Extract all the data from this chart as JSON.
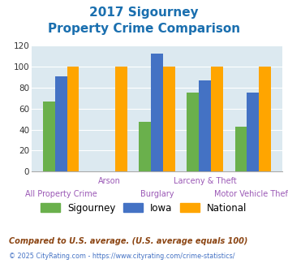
{
  "title_line1": "2017 Sigourney",
  "title_line2": "Property Crime Comparison",
  "title_color": "#1a6faf",
  "categories": [
    "All Property Crime",
    "Arson",
    "Burglary",
    "Larceny & Theft",
    "Motor Vehicle Theft"
  ],
  "cat_labels_row1": [
    "",
    "Arson",
    "",
    "Larceny & Theft",
    ""
  ],
  "cat_labels_row2": [
    "All Property Crime",
    "",
    "Burglary",
    "",
    "Motor Vehicle Theft"
  ],
  "sigourney": [
    67,
    0,
    47,
    75,
    43
  ],
  "iowa": [
    91,
    0,
    112,
    87,
    75
  ],
  "national": [
    100,
    100,
    100,
    100,
    100
  ],
  "sigourney_color": "#6ab04c",
  "iowa_color": "#4472c4",
  "national_color": "#ffa500",
  "ylim": [
    0,
    120
  ],
  "yticks": [
    0,
    20,
    40,
    60,
    80,
    100,
    120
  ],
  "plot_bg": "#dce9f0",
  "legend_labels": [
    "Sigourney",
    "Iowa",
    "National"
  ],
  "footnote1": "Compared to U.S. average. (U.S. average equals 100)",
  "footnote2": "© 2025 CityRating.com - https://www.cityrating.com/crime-statistics/",
  "footnote1_color": "#8b4513",
  "footnote2_color": "#4472c4",
  "xlabel_color": "#9b59b6",
  "bar_width": 0.25
}
